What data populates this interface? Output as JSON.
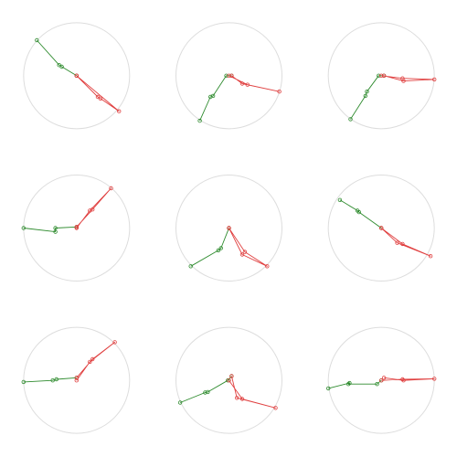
{
  "chart_data": [
    {
      "type": "line",
      "green": [
        [
          -0.75,
          0.67
        ],
        [
          -0.33,
          0.2
        ],
        [
          -0.28,
          0.17
        ],
        [
          0.0,
          0.0
        ]
      ],
      "red": [
        [
          0.0,
          0.0
        ],
        [
          0.4,
          -0.4
        ],
        [
          0.45,
          -0.43
        ],
        [
          0.8,
          -0.67
        ],
        [
          0.0,
          0.0
        ]
      ],
      "colors": {
        "green": "#2e8b2e",
        "red": "#e04040"
      }
    },
    {
      "type": "line",
      "green": [
        [
          -0.55,
          -0.85
        ],
        [
          -0.35,
          -0.4
        ],
        [
          -0.3,
          -0.38
        ],
        [
          -0.05,
          0.0
        ],
        [
          0.05,
          0.0
        ]
      ],
      "red": [
        [
          0.05,
          0.0
        ],
        [
          0.25,
          -0.15
        ],
        [
          0.95,
          -0.3
        ],
        [
          0.35,
          -0.17
        ],
        [
          0.0,
          0.0
        ]
      ],
      "colors": {
        "green": "#2e8b2e",
        "red": "#e04040"
      }
    },
    {
      "type": "line",
      "green": [
        [
          -0.58,
          -0.82
        ],
        [
          -0.3,
          -0.38
        ],
        [
          -0.27,
          -0.3
        ],
        [
          -0.05,
          0.0
        ],
        [
          0.05,
          0.0
        ]
      ],
      "red": [
        [
          0.05,
          0.0
        ],
        [
          0.42,
          -0.1
        ],
        [
          1.0,
          -0.07
        ],
        [
          0.4,
          -0.05
        ],
        [
          0.0,
          0.0
        ]
      ],
      "colors": {
        "green": "#2e8b2e",
        "red": "#e04040"
      }
    },
    {
      "type": "line",
      "green": [
        [
          -1.0,
          0.0
        ],
        [
          -0.4,
          -0.07
        ],
        [
          -0.4,
          0.0
        ],
        [
          0.0,
          0.02
        ]
      ],
      "red": [
        [
          0.0,
          0.02
        ],
        [
          0.3,
          0.35
        ],
        [
          0.65,
          0.75
        ],
        [
          0.25,
          0.33
        ],
        [
          0.0,
          0.0
        ]
      ],
      "colors": {
        "green": "#2e8b2e",
        "red": "#e04040"
      }
    },
    {
      "type": "line",
      "green": [
        [
          -0.72,
          -0.72
        ],
        [
          -0.2,
          -0.42
        ],
        [
          -0.15,
          -0.38
        ],
        [
          0.0,
          0.0
        ]
      ],
      "red": [
        [
          0.0,
          0.0
        ],
        [
          0.25,
          -0.5
        ],
        [
          0.72,
          -0.72
        ],
        [
          0.3,
          -0.45
        ],
        [
          0.0,
          0.0
        ]
      ],
      "colors": {
        "green": "#2e8b2e",
        "red": "#e04040"
      }
    },
    {
      "type": "line",
      "green": [
        [
          -0.78,
          0.53
        ],
        [
          -0.45,
          0.33
        ],
        [
          -0.42,
          0.3
        ],
        [
          0.0,
          0.0
        ]
      ],
      "red": [
        [
          0.0,
          0.0
        ],
        [
          0.3,
          -0.28
        ],
        [
          0.93,
          -0.53
        ],
        [
          0.4,
          -0.3
        ],
        [
          0.0,
          0.0
        ]
      ],
      "colors": {
        "green": "#2e8b2e",
        "red": "#e04040"
      }
    },
    {
      "type": "line",
      "green": [
        [
          -1.0,
          -0.03
        ],
        [
          -0.45,
          0.0
        ],
        [
          -0.38,
          0.02
        ],
        [
          0.0,
          0.05
        ]
      ],
      "red": [
        [
          0.0,
          0.05
        ],
        [
          0.3,
          0.4
        ],
        [
          0.72,
          0.72
        ],
        [
          0.25,
          0.35
        ],
        [
          0.0,
          0.0
        ]
      ],
      "colors": {
        "green": "#2e8b2e",
        "red": "#e04040"
      }
    },
    {
      "type": "line",
      "green": [
        [
          -0.92,
          -0.42
        ],
        [
          -0.45,
          -0.23
        ],
        [
          -0.4,
          -0.22
        ],
        [
          -0.02,
          0.0
        ],
        [
          0.05,
          0.08
        ]
      ],
      "red": [
        [
          0.05,
          0.08
        ],
        [
          0.15,
          -0.33
        ],
        [
          0.88,
          -0.52
        ],
        [
          0.25,
          -0.35
        ],
        [
          0.0,
          0.0
        ]
      ],
      "colors": {
        "green": "#2e8b2e",
        "red": "#e04040"
      }
    },
    {
      "type": "line",
      "green": [
        [
          -1.0,
          -0.15
        ],
        [
          -0.6,
          -0.05
        ],
        [
          -0.62,
          -0.07
        ],
        [
          -0.08,
          -0.07
        ],
        [
          0.0,
          0.0
        ]
      ],
      "red": [
        [
          0.0,
          0.0
        ],
        [
          0.4,
          0.02
        ],
        [
          1.0,
          0.03
        ],
        [
          0.42,
          0.0
        ],
        [
          0.05,
          0.05
        ]
      ],
      "colors": {
        "green": "#2e8b2e",
        "red": "#e04040"
      }
    }
  ]
}
